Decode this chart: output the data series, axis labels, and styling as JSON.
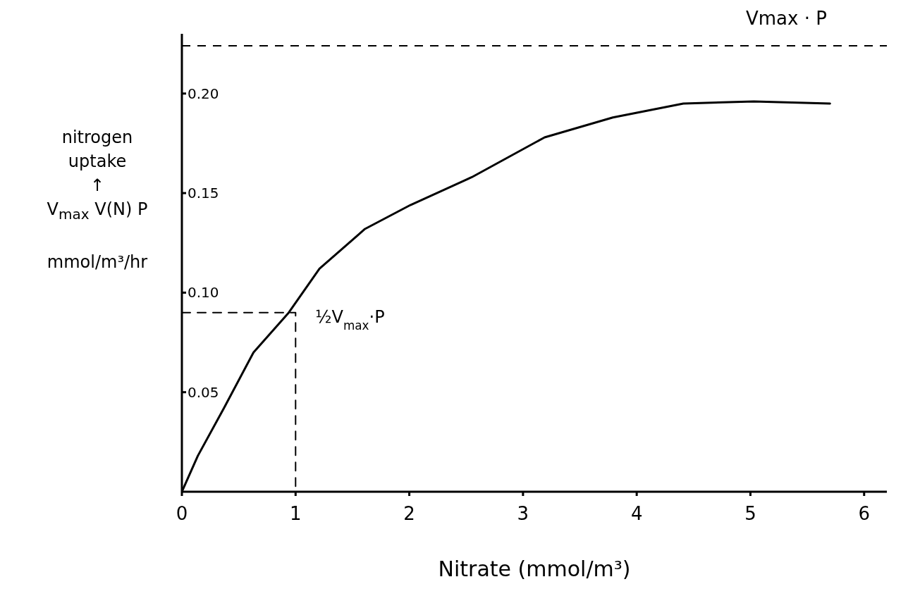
{
  "chart_data": {
    "type": "line",
    "xlabel": "Nitrate (mmol/m³)",
    "ylabel": "nitrogen\nuptake\n↑\nV$_{max}$ V(N) P\n\nmmol/m³/hr",
    "xlim": [
      0,
      6.2
    ],
    "xticks": [
      0,
      1,
      2,
      3,
      4,
      5,
      6
    ],
    "ylim": [
      0,
      0.23
    ],
    "yticks": [
      0.05,
      {
        "value": 0.1,
        "label": "0.10"
      },
      0.15,
      {
        "value": 0.2,
        "label": "0.20"
      }
    ],
    "series": [
      {
        "color": "#000000",
        "line_style": "solid",
        "x": [
          0,
          0.14,
          0.37,
          0.63,
          0.94,
          1.21,
          1.61,
          2.01,
          2.55,
          3.19,
          3.79,
          4.41,
          5.03,
          5.7
        ],
        "values": [
          0,
          0.018,
          0.042,
          0.07,
          0.09,
          0.112,
          0.132,
          0.144,
          0.158,
          0.178,
          0.188,
          0.195,
          0.196,
          0.195
        ]
      },
      {
        "color": "#000000",
        "line_style": "dashed",
        "x": [
          0,
          1,
          1
        ],
        "values": [
          0.09,
          0.09,
          0
        ]
      }
    ],
    "ref_lines": [
      {
        "axis": "y",
        "value": 0.224,
        "label": "Vmax · P",
        "line_style": "dashed",
        "color": "#000000"
      }
    ],
    "annotations": [
      {
        "text": "½V$_{max}$·P",
        "x": 1,
        "y": 0.09
      }
    ]
  }
}
